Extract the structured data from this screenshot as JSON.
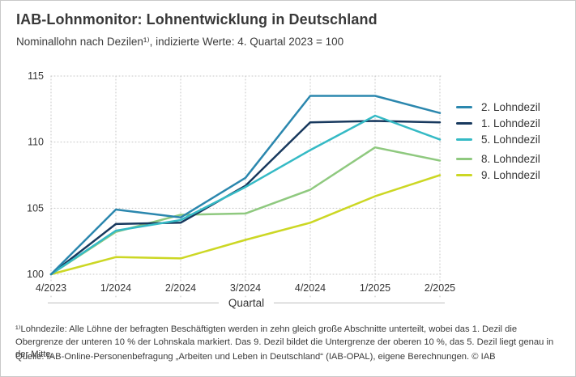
{
  "header": {
    "title": "IAB-Lohnmonitor: Lohnentwicklung in Deutschland",
    "subtitle": "Nominallohn nach Dezilen¹⁾, indizierte Werte: 4. Quartal 2023 = 100"
  },
  "chart_data": {
    "type": "line",
    "categories": [
      "4/2023",
      "1/2024",
      "2/2024",
      "3/2024",
      "4/2024",
      "1/2025",
      "2/2025"
    ],
    "series": [
      {
        "name": "2. Lohndezil",
        "color": "#2b87ae",
        "values": [
          100,
          104.9,
          104.3,
          107.3,
          113.5,
          113.5,
          112.2
        ]
      },
      {
        "name": "1. Lohndezil",
        "color": "#18395e",
        "values": [
          100,
          103.8,
          103.9,
          106.7,
          111.5,
          111.6,
          111.5
        ]
      },
      {
        "name": "5. Lohndezil",
        "color": "#35bac5",
        "values": [
          100,
          103.3,
          104.1,
          106.6,
          109.4,
          112.0,
          110.2
        ]
      },
      {
        "name": "8. Lohndezil",
        "color": "#8fc97f",
        "values": [
          100,
          103.2,
          104.5,
          104.6,
          106.4,
          109.6,
          108.6
        ]
      },
      {
        "name": "9. Lohndezil",
        "color": "#ccd724",
        "values": [
          100,
          101.3,
          101.2,
          102.6,
          103.9,
          105.9,
          107.5
        ]
      }
    ],
    "xlabel": "Quartal",
    "ylim": [
      100,
      115
    ],
    "yticks": [
      100,
      105,
      110,
      115
    ],
    "grid": "dotted",
    "legend_position": "right",
    "legend_groups": [
      [
        "2. Lohndezil",
        "1. Lohndezil",
        "5. Lohndezil"
      ],
      [
        "8. Lohndezil",
        "9. Lohndezil"
      ]
    ]
  },
  "footnote": "¹⁾Lohndezile: Alle Löhne der befragten Beschäftigten werden in zehn gleich große Abschnitte unterteilt, wobei das 1. Dezil die Obergrenze der unteren 10 % der Lohnskala markiert. Das 9. Dezil bildet die Untergrenze der oberen 10 %, das 5. Dezil liegt genau in der Mitte.",
  "source": "Quelle: IAB-Online-Personenbefragung „Arbeiten und Leben in Deutschland“ (IAB-OPAL), eigene Berechnungen. © IAB"
}
